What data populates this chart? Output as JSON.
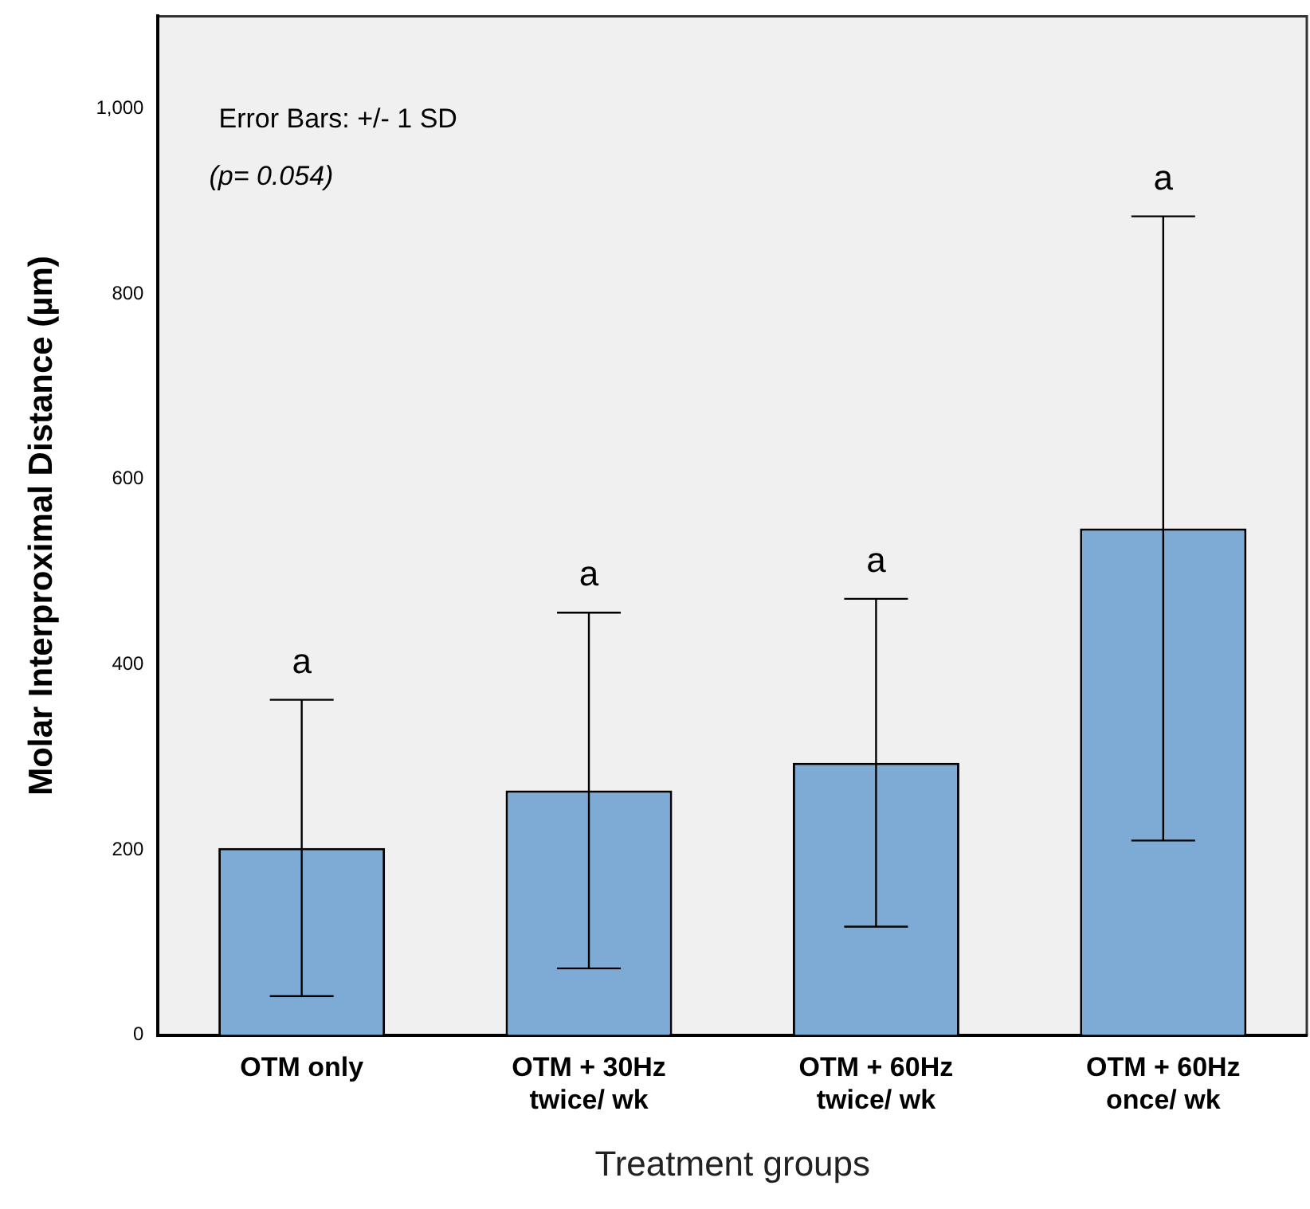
{
  "chart_data": {
    "type": "bar",
    "xlabel": "Treatment groups",
    "ylabel": "Molar Interproximal Distance (µm)",
    "categories": [
      "OTM only",
      "OTM + 30Hz\ntwice/ wk",
      "OTM + 60Hz\ntwice/ wk",
      "OTM + 60Hz\nonce/ wk"
    ],
    "values": [
      202,
      264,
      294,
      547
    ],
    "errors": [
      160,
      192,
      177,
      337
    ],
    "color": "#7eaad6",
    "ylim": [
      0,
      1100
    ],
    "yticks": [
      0,
      200,
      400,
      600,
      800,
      {
        "value": 1000,
        "label": "1,000"
      }
    ],
    "grid": false,
    "annotations": [
      "Error Bars: +/- 1 SD",
      "(p= 0.054)",
      {
        "text": "a",
        "x": "OTM only",
        "y": 362
      },
      {
        "text": "a",
        "x": "OTM + 30Hz\ntwice/ wk",
        "y": 456
      },
      {
        "text": "a",
        "x": "OTM + 60Hz\ntwice/ wk",
        "y": 471
      },
      {
        "text": "a",
        "x": "OTM + 60Hz\nonce/ wk",
        "y": 884
      }
    ]
  }
}
